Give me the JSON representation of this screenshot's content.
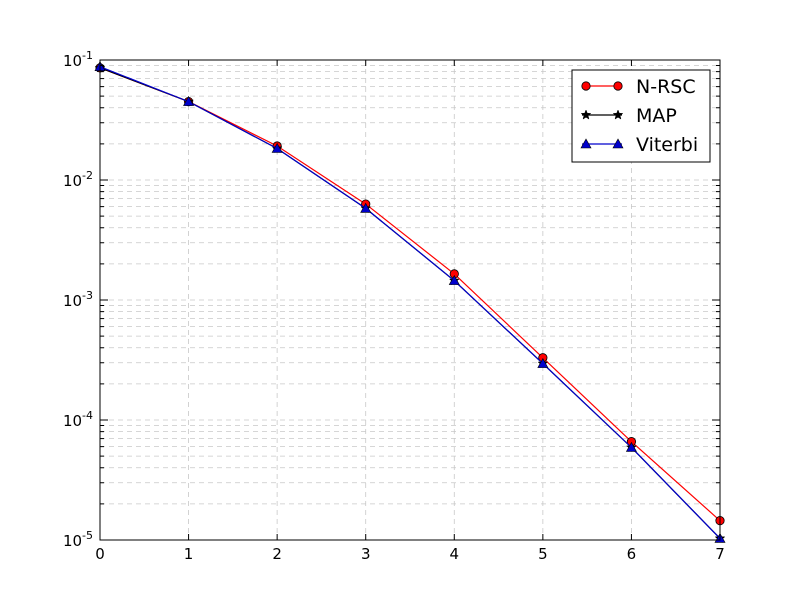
{
  "chart_data": {
    "type": "line",
    "title": "",
    "xlabel": "",
    "ylabel": "",
    "xlim": [
      0,
      7
    ],
    "ylim": [
      1e-05,
      0.1
    ],
    "yscale": "log",
    "grid": true,
    "legend_position": "top-right",
    "x_ticks": [
      "0",
      "1",
      "2",
      "3",
      "4",
      "5",
      "6",
      "7"
    ],
    "y_ticks": [
      {
        "value": 1e-05,
        "base": "10",
        "exp": "-5"
      },
      {
        "value": 0.0001,
        "base": "10",
        "exp": "-4"
      },
      {
        "value": 0.001,
        "base": "10",
        "exp": "-3"
      },
      {
        "value": 0.01,
        "base": "10",
        "exp": "-2"
      },
      {
        "value": 0.1,
        "base": "10",
        "exp": "-1"
      }
    ],
    "x": [
      0,
      1,
      2,
      3,
      4,
      5,
      6,
      7
    ],
    "series": [
      {
        "name": "N-RSC",
        "color": "#ff0000",
        "marker": "circle",
        "values": [
          0.086,
          0.045,
          0.0192,
          0.0063,
          0.00165,
          0.00033,
          6.6e-05,
          1.45e-05
        ]
      },
      {
        "name": "MAP",
        "color": "#000000",
        "marker": "star",
        "values": [
          0.086,
          0.045,
          0.0183,
          0.0058,
          0.00145,
          0.000295,
          5.9e-05,
          1.03e-05
        ]
      },
      {
        "name": "Viterbi",
        "color": "#0000cc",
        "marker": "triangle",
        "values": [
          0.088,
          0.045,
          0.0183,
          0.0058,
          0.00145,
          0.000295,
          5.9e-05,
          1.03e-05
        ]
      }
    ]
  }
}
